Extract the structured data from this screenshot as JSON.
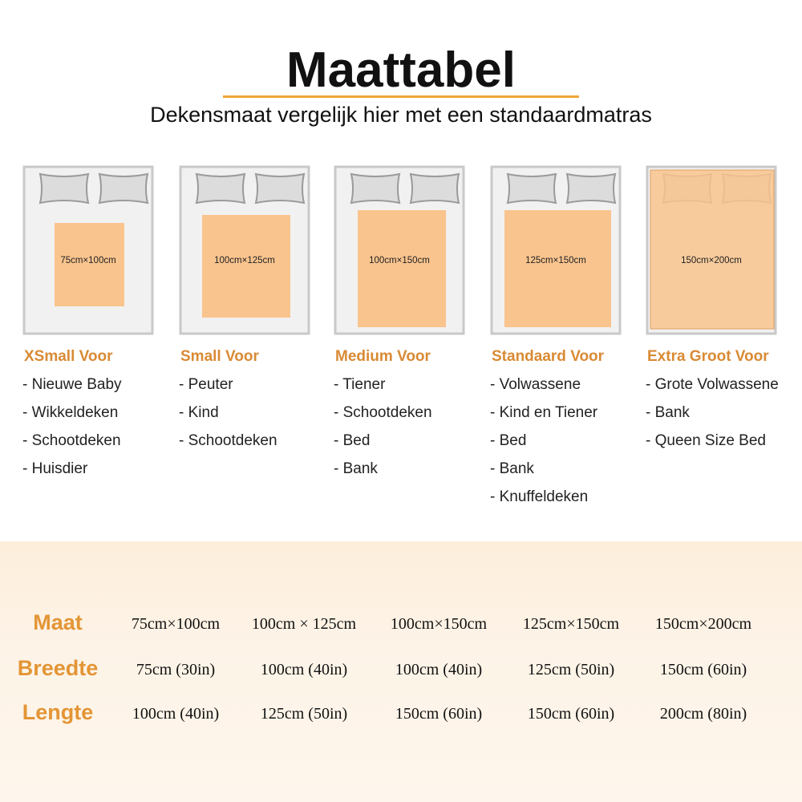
{
  "header": {
    "title": "Maattabel",
    "subtitle": "Dekensmaat vergelijk hier met een standaardmatras"
  },
  "cards": [
    {
      "size_label": "75cm×100cm",
      "heading": "XSmall Voor",
      "items": [
        "- Nieuwe Baby",
        "- Wikkeldeken",
        "- Schootdeken",
        "- Huisdier"
      ]
    },
    {
      "size_label": "100cm×125cm",
      "heading": "Small Voor",
      "items": [
        "- Peuter",
        "- Kind",
        "- Schootdeken"
      ]
    },
    {
      "size_label": "100cm×150cm",
      "heading": "Medium Voor",
      "items": [
        "- Tiener",
        "- Schootdeken",
        "- Bed",
        "- Bank"
      ]
    },
    {
      "size_label": "125cm×150cm",
      "heading": "Standaard Voor",
      "items": [
        "- Volwassene",
        "- Kind en Tiener",
        "- Bed",
        "- Bank",
        "- Knuffeldeken"
      ]
    },
    {
      "size_label": "150cm×200cm",
      "heading": "Extra Groot Voor",
      "items": [
        "- Grote Volwassene",
        "- Bank",
        "- Queen Size Bed"
      ]
    }
  ],
  "table": {
    "rows": [
      {
        "label": "Maat",
        "cells": [
          "75cm×100cm",
          "100cm × 125cm",
          "100cm×150cm",
          "125cm×150cm",
          "150cm×200cm"
        ]
      },
      {
        "label": "Breedte",
        "cells": [
          "75cm (30in)",
          "100cm (40in)",
          "100cm (40in)",
          "125cm (50in)",
          "150cm (60in)"
        ]
      },
      {
        "label": "Lengte",
        "cells": [
          "100cm (40in)",
          "125cm (50in)",
          "150cm (60in)",
          "150cm (60in)",
          "200cm (80in)"
        ]
      }
    ]
  }
}
